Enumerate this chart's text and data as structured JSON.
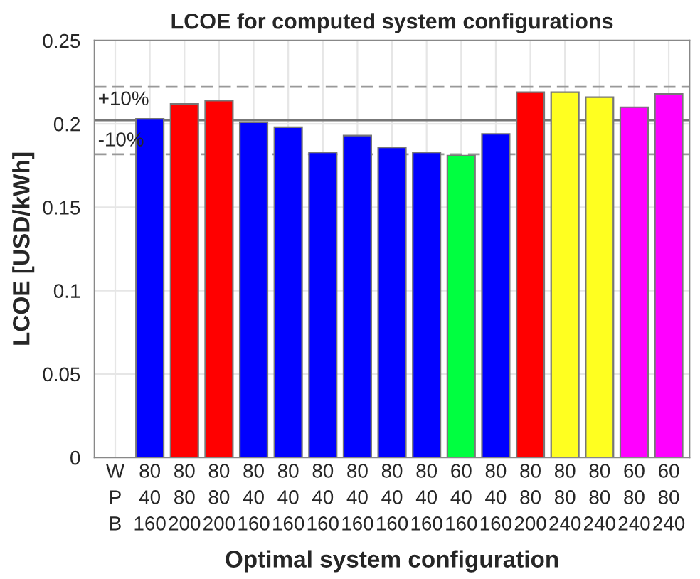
{
  "chart_data": {
    "type": "bar",
    "title": "LCOE for computed system configurations",
    "xlabel": "Optimal system configuration",
    "ylabel": "LCOE [USD/kWh]",
    "categories": [
      "W\nP\nB",
      "80\n40\n160",
      "80\n80\n200",
      "80\n80\n200",
      "80\n40\n160",
      "80\n40\n160",
      "80\n40\n160",
      "80\n40\n160",
      "80\n40\n160",
      "80\n40\n160",
      "60\n40\n160",
      "80\n40\n160",
      "80\n80\n200",
      "80\n80\n240",
      "80\n80\n240",
      "60\n80\n240",
      "60\n80\n240"
    ],
    "values": [
      null,
      0.203,
      0.212,
      0.214,
      0.201,
      0.198,
      0.183,
      0.193,
      0.186,
      0.183,
      0.181,
      0.194,
      0.219,
      0.219,
      0.216,
      0.21,
      0.218
    ],
    "annotations": [
      {
        "text": "+10%",
        "y": 0.2222
      },
      {
        "text": "-10%",
        "y": 0.1818
      }
    ],
    "colors": [
      "#0000ff",
      "#0000ff",
      "#ff0000",
      "#ff0000",
      "#0000ff",
      "#0000ff",
      "#0000ff",
      "#0000ff",
      "#0000ff",
      "#0000ff",
      "#00ff40",
      "#0000ff",
      "#ff0000",
      "#ffff20",
      "#ffff20",
      "#ff00ff",
      "#ff00ff"
    ],
    "ylim": [
      0,
      0.25
    ],
    "yticks": [
      0,
      0.05,
      0.1,
      0.15,
      0.2,
      0.25
    ],
    "grid": true,
    "ref_lines": [
      {
        "axis": "y",
        "value": 0.2222,
        "color": "#999999",
        "line_style": "dashed"
      },
      {
        "axis": "y",
        "value": 0.2022,
        "color": "#777777",
        "line_style": "solid"
      },
      {
        "axis": "y",
        "value": 0.1818,
        "color": "#999999",
        "line_style": "dashed"
      }
    ]
  }
}
